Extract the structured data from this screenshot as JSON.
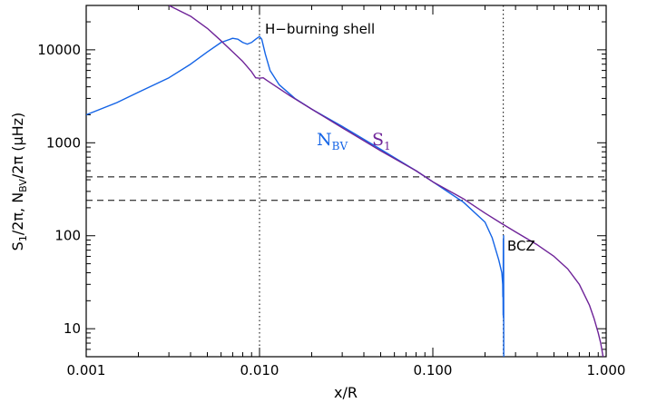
{
  "chart_data": {
    "type": "line",
    "xscale": "log",
    "yscale": "log",
    "xlim": [
      0.001,
      1.0
    ],
    "ylim": [
      5,
      30000
    ],
    "xlabel": "x/R",
    "ylabel_parts": [
      "S",
      "1",
      "/2π,  N",
      "BV",
      "/2π  (μHz)"
    ],
    "x_tick_labels": [
      "0.001",
      "0.010",
      "0.100",
      "1.000"
    ],
    "x_ticks": [
      0.001,
      0.01,
      0.1,
      1.0
    ],
    "y_tick_labels": [
      "10",
      "100",
      "1000",
      "10000"
    ],
    "y_ticks": [
      10,
      100,
      1000,
      10000
    ],
    "series": [
      {
        "name": "N",
        "subscript": "BV",
        "color": "#1464e6",
        "points": [
          [
            0.001,
            2000
          ],
          [
            0.0015,
            2700
          ],
          [
            0.002,
            3500
          ],
          [
            0.003,
            5000
          ],
          [
            0.004,
            7000
          ],
          [
            0.005,
            9500
          ],
          [
            0.006,
            12000
          ],
          [
            0.007,
            13300
          ],
          [
            0.0075,
            13000
          ],
          [
            0.008,
            12000
          ],
          [
            0.0085,
            11500
          ],
          [
            0.009,
            12000
          ],
          [
            0.0095,
            13000
          ],
          [
            0.01,
            13900
          ],
          [
            0.0103,
            13000
          ],
          [
            0.0108,
            9000
          ],
          [
            0.0115,
            6000
          ],
          [
            0.013,
            4200
          ],
          [
            0.016,
            3000
          ],
          [
            0.02,
            2300
          ],
          [
            0.03,
            1500
          ],
          [
            0.05,
            850
          ],
          [
            0.08,
            500
          ],
          [
            0.1,
            380
          ],
          [
            0.15,
            230
          ],
          [
            0.2,
            140
          ],
          [
            0.22,
            95
          ],
          [
            0.24,
            55
          ],
          [
            0.25,
            40
          ],
          [
            0.253,
            30
          ],
          [
            0.2535,
            22
          ],
          [
            0.254,
            32
          ],
          [
            0.2545,
            14
          ],
          [
            0.255,
            90
          ],
          [
            0.2555,
            13
          ],
          [
            0.256,
            100
          ],
          [
            0.2565,
            5
          ]
        ]
      },
      {
        "name": "S",
        "subscript": "1",
        "color": "#6e2398",
        "points": [
          [
            0.003,
            30000
          ],
          [
            0.004,
            23000
          ],
          [
            0.005,
            17000
          ],
          [
            0.006,
            12500
          ],
          [
            0.008,
            7500
          ],
          [
            0.009,
            5800
          ],
          [
            0.0095,
            5000
          ],
          [
            0.01,
            4950
          ],
          [
            0.0105,
            5000
          ],
          [
            0.011,
            4700
          ],
          [
            0.015,
            3200
          ],
          [
            0.02,
            2300
          ],
          [
            0.03,
            1450
          ],
          [
            0.05,
            820
          ],
          [
            0.08,
            500
          ],
          [
            0.1,
            380
          ],
          [
            0.15,
            250
          ],
          [
            0.2,
            175
          ],
          [
            0.25,
            135
          ],
          [
            0.3,
            110
          ],
          [
            0.4,
            80
          ],
          [
            0.5,
            60
          ],
          [
            0.6,
            44
          ],
          [
            0.7,
            30
          ],
          [
            0.8,
            18
          ],
          [
            0.85,
            13
          ],
          [
            0.9,
            9
          ],
          [
            0.93,
            7
          ],
          [
            0.96,
            5
          ]
        ]
      }
    ],
    "horizontal_lines": [
      430,
      240
    ],
    "vertical_lines": [
      0.01,
      0.255
    ],
    "annotations": {
      "h_burning": "H−burning shell",
      "bcz": "BCZ"
    }
  }
}
